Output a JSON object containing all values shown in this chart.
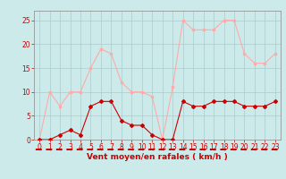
{
  "x": [
    0,
    1,
    2,
    3,
    4,
    5,
    6,
    7,
    8,
    9,
    10,
    11,
    12,
    13,
    14,
    15,
    16,
    17,
    18,
    19,
    20,
    21,
    22,
    23
  ],
  "wind_avg": [
    0,
    0,
    1,
    2,
    1,
    7,
    8,
    8,
    4,
    3,
    3,
    1,
    0,
    0,
    8,
    7,
    7,
    8,
    8,
    8,
    7,
    7,
    7,
    8
  ],
  "wind_gust": [
    0,
    10,
    7,
    10,
    10,
    15,
    19,
    18,
    12,
    10,
    10,
    9,
    0,
    11,
    25,
    23,
    23,
    23,
    25,
    25,
    18,
    16,
    16,
    18
  ],
  "color_avg": "#cc0000",
  "color_gust": "#ffaaaa",
  "bg_color": "#cceaea",
  "grid_color": "#aacccc",
  "xlabel": "Vent moyen/en rafales ( km/h )",
  "ylim": [
    0,
    27
  ],
  "xlim": [
    -0.5,
    23.5
  ],
  "yticks": [
    0,
    5,
    10,
    15,
    20,
    25
  ],
  "xticks": [
    0,
    1,
    2,
    3,
    4,
    5,
    6,
    7,
    8,
    9,
    10,
    11,
    12,
    13,
    14,
    15,
    16,
    17,
    18,
    19,
    20,
    21,
    22,
    23
  ],
  "tick_fontsize": 5.5,
  "xlabel_fontsize": 6.5
}
